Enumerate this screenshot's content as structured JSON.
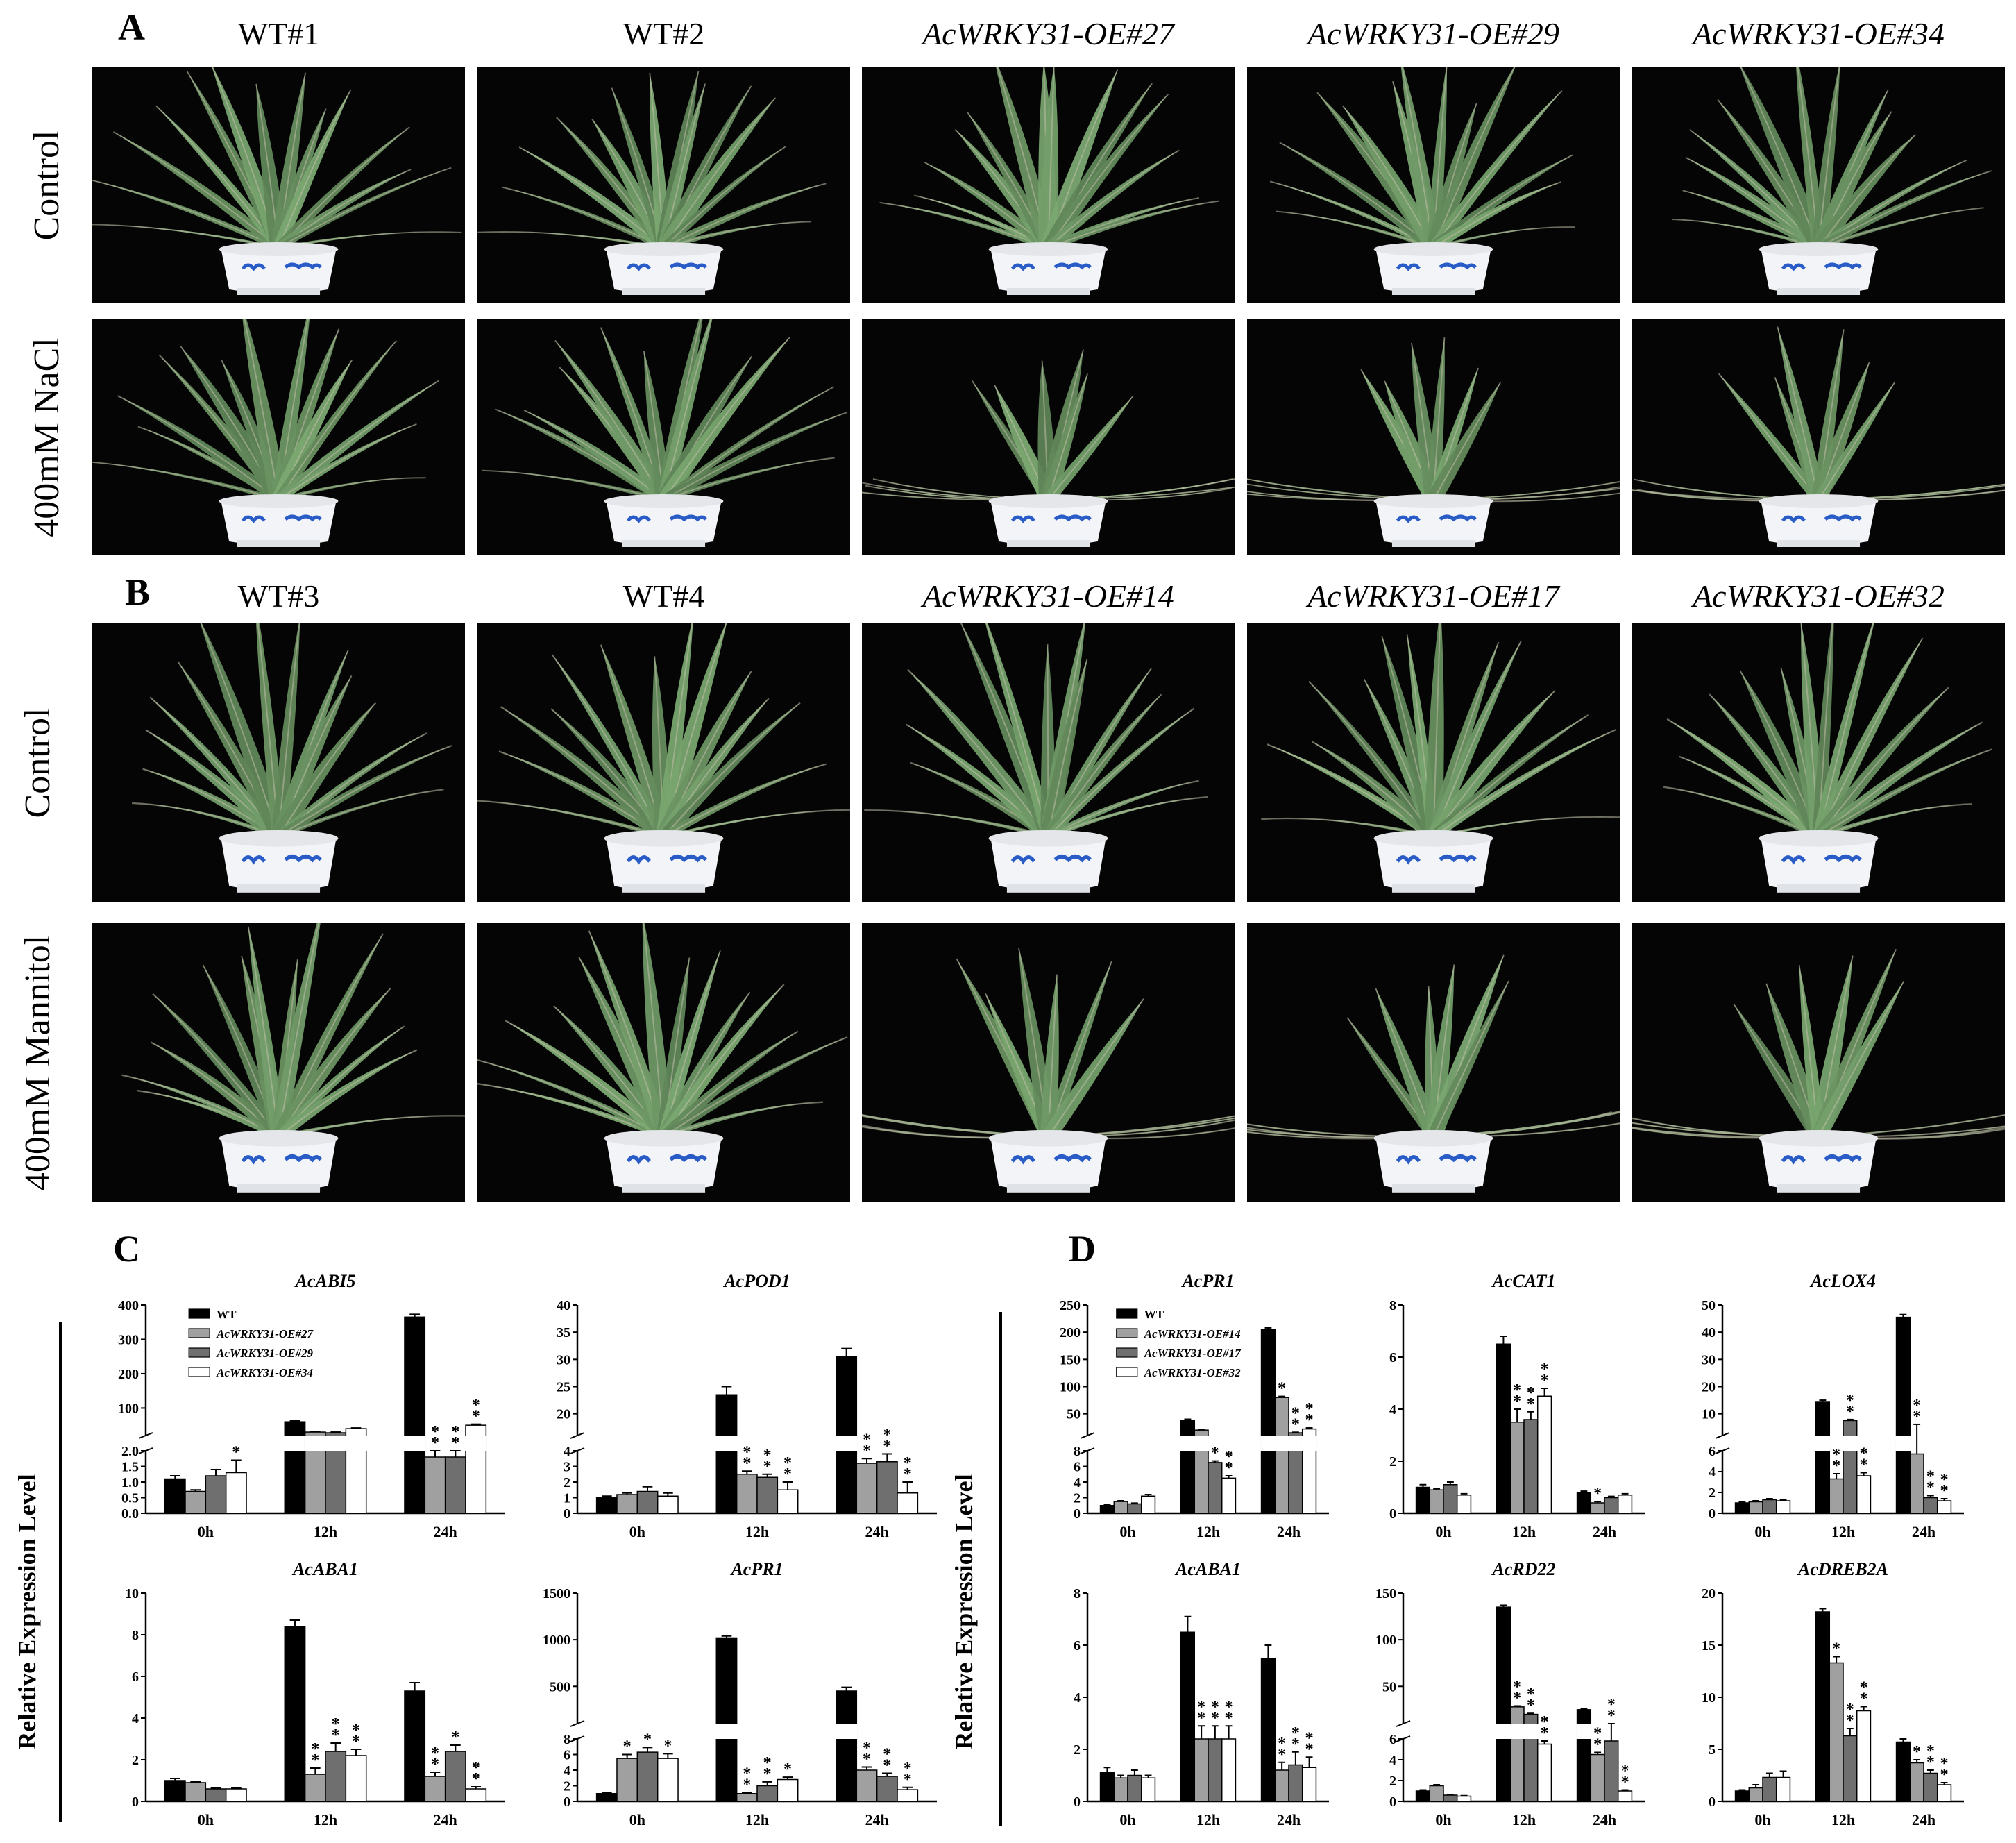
{
  "panel_a": {
    "letter": "A",
    "columns": [
      "WT#1",
      "WT#2",
      "AcWRKY31-OE#27",
      "AcWRKY31-OE#29",
      "AcWRKY31-OE#34"
    ],
    "rows": [
      "Control",
      "400mM NaCl"
    ]
  },
  "panel_b": {
    "letter": "B",
    "columns": [
      "WT#3",
      "WT#4",
      "AcWRKY31-OE#14",
      "AcWRKY31-OE#17",
      "AcWRKY31-OE#32"
    ],
    "rows": [
      "Control",
      "400mM Mannitol"
    ]
  },
  "panel_c": {
    "letter": "C",
    "ylabel": "Relative Expression Level"
  },
  "panel_d": {
    "letter": "D",
    "ylabel": "Relative Expression Level"
  },
  "colors": {
    "wt": "#000000",
    "oe1": "#a0a0a0",
    "oe2": "#6f6f6f",
    "oe3": "#ffffff",
    "background": "#050505",
    "leaf": "#6f8f6a",
    "pot": "#f2f4f7",
    "pot_motif": "#2a5cc8"
  },
  "chart_data": [
    {
      "type": "bar",
      "title": "AcABI5",
      "categories": [
        "0h",
        "12h",
        "24h"
      ],
      "legend": [
        "WT",
        "AcWRKY31-OE#27",
        "AcWRKY31-OE#29",
        "AcWRKY31-OE#34"
      ],
      "series": [
        {
          "name": "WT",
          "values": [
            1.1,
            60,
            365
          ],
          "errors": [
            0.1,
            3,
            8
          ]
        },
        {
          "name": "AcWRKY31-OE#27",
          "values": [
            0.7,
            30,
            1.8
          ],
          "errors": [
            0.05,
            2,
            0.2
          ]
        },
        {
          "name": "AcWRKY31-OE#29",
          "values": [
            1.2,
            28,
            1.8
          ],
          "errors": [
            0.2,
            2,
            0.2
          ]
        },
        {
          "name": "AcWRKY31-OE#34",
          "values": [
            1.3,
            40,
            50
          ],
          "errors": [
            0.4,
            2,
            3
          ]
        }
      ],
      "stars": [
        [
          "",
          "",
          ""
        ],
        [
          "",
          "",
          "**"
        ],
        [
          "",
          "",
          "**"
        ],
        [
          "*",
          "",
          "**"
        ]
      ],
      "axis": {
        "broken": true,
        "lower_ticks": [
          0.0,
          0.5,
          1.0,
          1.5,
          2.0
        ],
        "upper_ticks": [
          100,
          200,
          300,
          400
        ]
      }
    },
    {
      "type": "bar",
      "title": "AcPOD1",
      "categories": [
        "0h",
        "12h",
        "24h"
      ],
      "series": [
        {
          "name": "WT",
          "values": [
            1.0,
            23.5,
            30.5
          ],
          "errors": [
            0.1,
            1.5,
            1.5
          ]
        },
        {
          "name": "AcWRKY31-OE#27",
          "values": [
            1.2,
            2.5,
            3.2
          ],
          "errors": [
            0.1,
            0.2,
            0.3
          ]
        },
        {
          "name": "AcWRKY31-OE#29",
          "values": [
            1.4,
            2.3,
            3.3
          ],
          "errors": [
            0.3,
            0.2,
            0.5
          ]
        },
        {
          "name": "AcWRKY31-OE#34",
          "values": [
            1.1,
            1.5,
            1.3
          ],
          "errors": [
            0.2,
            0.5,
            0.7
          ]
        }
      ],
      "stars": [
        [
          "",
          "",
          ""
        ],
        [
          "",
          "**",
          "**"
        ],
        [
          "",
          "**",
          "**"
        ],
        [
          "",
          "**",
          "**"
        ]
      ],
      "axis": {
        "broken": true,
        "lower_ticks": [
          0,
          1,
          2,
          3,
          4
        ],
        "upper_ticks": [
          20,
          25,
          30,
          35,
          40
        ]
      }
    },
    {
      "type": "bar",
      "title": "AcABA1",
      "categories": [
        "0h",
        "12h",
        "24h"
      ],
      "series": [
        {
          "name": "WT",
          "values": [
            1.0,
            8.4,
            5.3
          ],
          "errors": [
            0.1,
            0.3,
            0.4
          ]
        },
        {
          "name": "AcWRKY31-OE#27",
          "values": [
            0.9,
            1.3,
            1.2
          ],
          "errors": [
            0.05,
            0.3,
            0.2
          ]
        },
        {
          "name": "AcWRKY31-OE#29",
          "values": [
            0.6,
            2.4,
            2.4
          ],
          "errors": [
            0.05,
            0.4,
            0.3
          ]
        },
        {
          "name": "AcWRKY31-OE#34",
          "values": [
            0.6,
            2.2,
            0.6
          ],
          "errors": [
            0.05,
            0.3,
            0.1
          ]
        }
      ],
      "stars": [
        [
          "",
          "",
          ""
        ],
        [
          "",
          "**",
          "**"
        ],
        [
          "",
          "**",
          "*"
        ],
        [
          "",
          "**",
          "**"
        ]
      ],
      "axis": {
        "broken": false,
        "ticks": [
          0,
          2,
          4,
          6,
          8,
          10
        ]
      }
    },
    {
      "type": "bar",
      "title": "AcPR1",
      "categories": [
        "0h",
        "12h",
        "24h"
      ],
      "series": [
        {
          "name": "WT",
          "values": [
            1.0,
            1020,
            450
          ],
          "errors": [
            0.1,
            20,
            40
          ]
        },
        {
          "name": "AcWRKY31-OE#27",
          "values": [
            5.5,
            1.0,
            4.0
          ],
          "errors": [
            0.5,
            0.1,
            0.4
          ]
        },
        {
          "name": "AcWRKY31-OE#29",
          "values": [
            6.3,
            2.0,
            3.2
          ],
          "errors": [
            0.6,
            0.5,
            0.4
          ]
        },
        {
          "name": "AcWRKY31-OE#34",
          "values": [
            5.5,
            2.8,
            1.5
          ],
          "errors": [
            0.6,
            0.3,
            0.3
          ]
        }
      ],
      "stars": [
        [
          "",
          "",
          ""
        ],
        [
          "*",
          "**",
          "**"
        ],
        [
          "*",
          "**",
          "**"
        ],
        [
          "*",
          "*",
          "**"
        ]
      ],
      "axis": {
        "broken": true,
        "lower_ticks": [
          0,
          2,
          4,
          6,
          8
        ],
        "upper_ticks": [
          500,
          1000,
          1500
        ]
      }
    },
    {
      "type": "bar",
      "title": "AcPR1",
      "categories": [
        "0h",
        "12h",
        "24h"
      ],
      "legend": [
        "WT",
        "AcWRKY31-OE#14",
        "AcWRKY31-OE#17",
        "AcWRKY31-OE#32"
      ],
      "series": [
        {
          "name": "WT",
          "values": [
            1.0,
            38,
            205
          ],
          "errors": [
            0.1,
            2,
            3
          ]
        },
        {
          "name": "AcWRKY31-OE#14",
          "values": [
            1.5,
            20,
            80
          ],
          "errors": [
            0.1,
            1,
            2
          ]
        },
        {
          "name": "AcWRKY31-OE#17",
          "values": [
            1.2,
            6.5,
            15
          ],
          "errors": [
            0.1,
            0.2,
            1
          ]
        },
        {
          "name": "AcWRKY31-OE#32",
          "values": [
            2.2,
            4.5,
            22
          ],
          "errors": [
            0.2,
            0.3,
            2
          ]
        }
      ],
      "stars": [
        [
          "",
          "",
          ""
        ],
        [
          "",
          "",
          "*"
        ],
        [
          "",
          "*",
          "**"
        ],
        [
          "",
          "**",
          "**"
        ]
      ],
      "axis": {
        "broken": true,
        "lower_ticks": [
          0,
          2,
          4,
          6,
          8
        ],
        "upper_ticks": [
          50,
          100,
          150,
          200,
          250
        ]
      }
    },
    {
      "type": "bar",
      "title": "AcCAT1",
      "categories": [
        "0h",
        "12h",
        "24h"
      ],
      "series": [
        {
          "name": "WT",
          "values": [
            1.0,
            6.5,
            0.8
          ],
          "errors": [
            0.1,
            0.3,
            0.05
          ]
        },
        {
          "name": "AcWRKY31-OE#14",
          "values": [
            0.9,
            3.5,
            0.4
          ],
          "errors": [
            0.05,
            0.5,
            0.05
          ]
        },
        {
          "name": "AcWRKY31-OE#17",
          "values": [
            1.1,
            3.6,
            0.6
          ],
          "errors": [
            0.1,
            0.3,
            0.05
          ]
        },
        {
          "name": "AcWRKY31-OE#32",
          "values": [
            0.7,
            4.5,
            0.7
          ],
          "errors": [
            0.05,
            0.3,
            0.05
          ]
        }
      ],
      "stars": [
        [
          "",
          "",
          ""
        ],
        [
          "",
          "**",
          "*"
        ],
        [
          "",
          "**",
          ""
        ],
        [
          "",
          "**",
          ""
        ]
      ],
      "axis": {
        "broken": false,
        "ticks": [
          0,
          2,
          4,
          6,
          8
        ]
      }
    },
    {
      "type": "bar",
      "title": "AcLOX4",
      "categories": [
        "0h",
        "12h",
        "24h"
      ],
      "series": [
        {
          "name": "WT",
          "values": [
            1.0,
            14.5,
            45.5
          ],
          "errors": [
            0.1,
            0.5,
            1
          ]
        },
        {
          "name": "AcWRKY31-OE#14",
          "values": [
            1.1,
            3.3,
            5.7
          ],
          "errors": [
            0.1,
            0.5,
            0.4
          ]
        },
        {
          "name": "AcWRKY31-OE#17",
          "values": [
            1.3,
            7.5,
            1.5
          ],
          "errors": [
            0.1,
            0.4,
            0.2
          ]
        },
        {
          "name": "AcWRKY31-OE#32",
          "values": [
            1.2,
            3.6,
            1.2
          ],
          "errors": [
            0.1,
            0.3,
            0.2
          ]
        }
      ],
      "stars": [
        [
          "",
          "",
          ""
        ],
        [
          "",
          "**",
          "**"
        ],
        [
          "",
          "**",
          "**"
        ],
        [
          "",
          "**",
          "**"
        ]
      ],
      "axis": {
        "broken": true,
        "lower_ticks": [
          0,
          2,
          4,
          6
        ],
        "upper_ticks": [
          10,
          20,
          30,
          40,
          50
        ]
      }
    },
    {
      "type": "bar",
      "title": "AcABA1",
      "categories": [
        "0h",
        "12h",
        "24h"
      ],
      "series": [
        {
          "name": "WT",
          "values": [
            1.1,
            6.5,
            5.5
          ],
          "errors": [
            0.2,
            0.6,
            0.5
          ]
        },
        {
          "name": "AcWRKY31-OE#14",
          "values": [
            0.9,
            2.4,
            1.2
          ],
          "errors": [
            0.1,
            0.5,
            0.3
          ]
        },
        {
          "name": "AcWRKY31-OE#17",
          "values": [
            1.0,
            2.4,
            1.4
          ],
          "errors": [
            0.2,
            0.5,
            0.5
          ]
        },
        {
          "name": "AcWRKY31-OE#32",
          "values": [
            0.9,
            2.4,
            1.3
          ],
          "errors": [
            0.1,
            0.5,
            0.4
          ]
        }
      ],
      "stars": [
        [
          "",
          "",
          ""
        ],
        [
          "",
          "**",
          "**"
        ],
        [
          "",
          "**",
          "**"
        ],
        [
          "",
          "**",
          "**"
        ]
      ],
      "axis": {
        "broken": false,
        "ticks": [
          0,
          2,
          4,
          6,
          8
        ]
      }
    },
    {
      "type": "bar",
      "title": "AcRD22",
      "categories": [
        "0h",
        "12h",
        "24h"
      ],
      "series": [
        {
          "name": "WT",
          "values": [
            1.0,
            135,
            25
          ],
          "errors": [
            0.1,
            2,
            1
          ]
        },
        {
          "name": "AcWRKY31-OE#14",
          "values": [
            1.5,
            28,
            4.5
          ],
          "errors": [
            0.1,
            1,
            0.2
          ]
        },
        {
          "name": "AcWRKY31-OE#17",
          "values": [
            0.6,
            20,
            5.8
          ],
          "errors": [
            0.05,
            1,
            0.3
          ]
        },
        {
          "name": "AcWRKY31-OE#32",
          "values": [
            0.5,
            5.5,
            1.0
          ],
          "errors": [
            0.05,
            0.3,
            0.1
          ]
        }
      ],
      "stars": [
        [
          "",
          "",
          ""
        ],
        [
          "",
          "**",
          "**"
        ],
        [
          "",
          "**",
          "**"
        ],
        [
          "",
          "**",
          "**"
        ]
      ],
      "axis": {
        "broken": true,
        "lower_ticks": [
          0,
          2,
          4,
          6
        ],
        "upper_ticks": [
          50,
          100,
          150
        ]
      }
    },
    {
      "type": "bar",
      "title": "AcDREB2A",
      "categories": [
        "0h",
        "12h",
        "24h"
      ],
      "series": [
        {
          "name": "WT",
          "values": [
            1.0,
            18.2,
            5.7
          ],
          "errors": [
            0.1,
            0.3,
            0.3
          ]
        },
        {
          "name": "AcWRKY31-OE#14",
          "values": [
            1.3,
            13.3,
            3.7
          ],
          "errors": [
            0.3,
            0.6,
            0.3
          ]
        },
        {
          "name": "AcWRKY31-OE#17",
          "values": [
            2.3,
            6.3,
            2.7
          ],
          "errors": [
            0.4,
            0.7,
            0.3
          ]
        },
        {
          "name": "AcWRKY31-OE#32",
          "values": [
            2.3,
            8.7,
            1.6
          ],
          "errors": [
            0.6,
            0.4,
            0.2
          ]
        }
      ],
      "stars": [
        [
          "",
          "",
          ""
        ],
        [
          "",
          "*",
          "*"
        ],
        [
          "",
          "**",
          "**"
        ],
        [
          "",
          "**",
          "**"
        ]
      ],
      "axis": {
        "broken": false,
        "ticks": [
          0,
          5,
          10,
          15,
          20
        ]
      }
    }
  ]
}
